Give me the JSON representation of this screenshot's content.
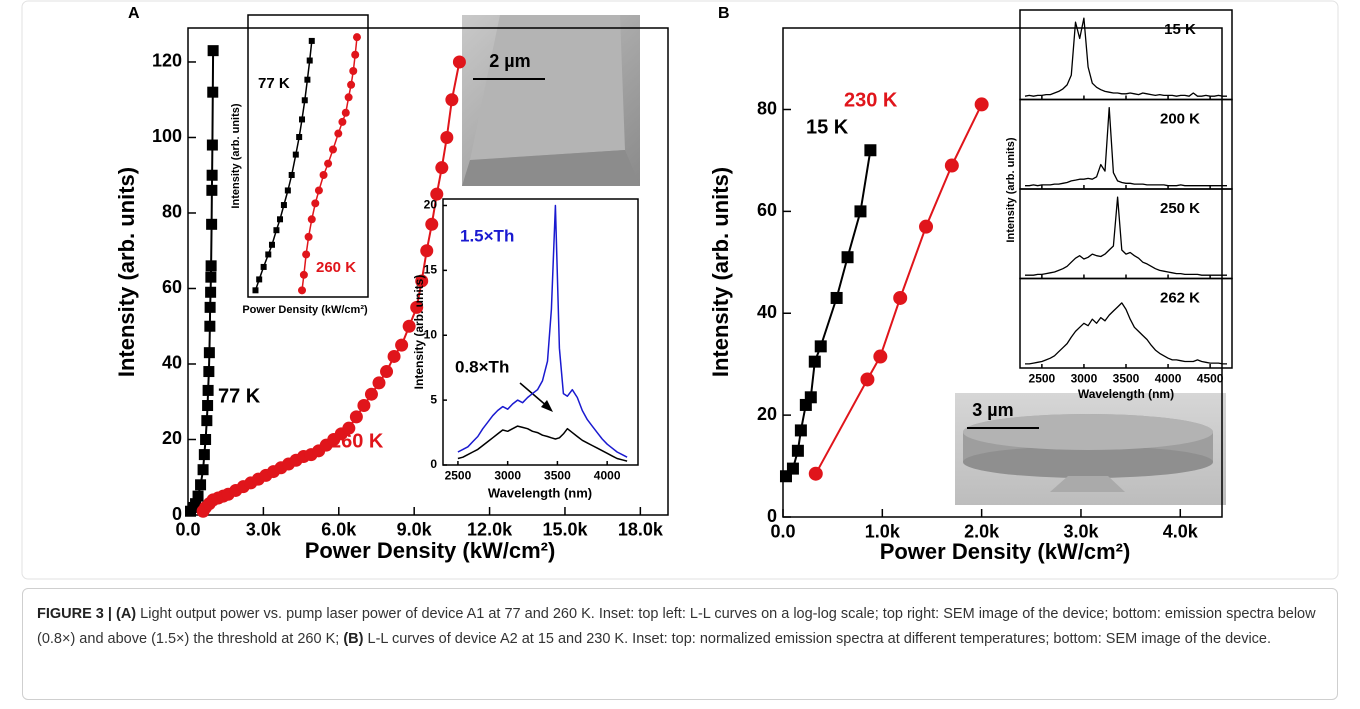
{
  "panel_labels": [
    "A",
    "B"
  ],
  "sem_images": [
    {
      "scale": "2 µm"
    },
    {
      "scale": "3 µm"
    }
  ],
  "chart_data": [
    {
      "type": "line",
      "xlabel": "Power Density (kW/cm²)",
      "ylabel": "Intensity (arb. units)",
      "xlim": [
        0,
        19100
      ],
      "ylim": [
        0,
        129
      ],
      "xticks": [
        {
          "value": 0,
          "label": "0.0"
        },
        {
          "value": 3000,
          "label": "3.0k"
        },
        {
          "value": 6000,
          "label": "6.0k"
        },
        {
          "value": 9000,
          "label": "9.0k"
        },
        {
          "value": 12000,
          "label": "12.0k"
        },
        {
          "value": 15000,
          "label": "15.0k"
        },
        {
          "value": 18000,
          "label": "18.0k"
        }
      ],
      "yticks": [
        0,
        20,
        40,
        60,
        80,
        100,
        120
      ],
      "series": [
        {
          "name": "77 K",
          "color": "#000000",
          "marker": "square",
          "x": [
            100,
            200,
            300,
            400,
            500,
            600,
            650,
            700,
            750,
            780,
            800,
            830,
            850,
            870,
            880,
            900,
            910,
            920,
            940,
            950,
            960,
            970,
            985,
            1000
          ],
          "values": [
            1,
            2,
            3,
            5,
            8,
            12,
            16,
            20,
            25,
            29,
            33,
            38,
            43,
            50,
            55,
            59,
            63,
            66,
            77,
            86,
            90,
            98,
            112,
            123
          ]
        },
        {
          "name": "260 K",
          "color": "#e0151b",
          "marker": "circle",
          "x": [
            600,
            700,
            850,
            1000,
            1200,
            1400,
            1600,
            1900,
            2200,
            2500,
            2800,
            3100,
            3400,
            3700,
            4000,
            4300,
            4600,
            4900,
            5200,
            5500,
            5800,
            6100,
            6400,
            6700,
            7000,
            7300,
            7600,
            7900,
            8200,
            8500,
            8800,
            9100,
            9300,
            9500,
            9700,
            9900,
            10100,
            10300,
            10500,
            10800
          ],
          "values": [
            1,
            2,
            3,
            4,
            4.5,
            5,
            5.5,
            6.5,
            7.5,
            8.5,
            9.5,
            10.5,
            11.5,
            12.5,
            13.5,
            14.5,
            15.5,
            16,
            17,
            18.5,
            20,
            21.5,
            23,
            26,
            29,
            32,
            35,
            38,
            42,
            45,
            50,
            55,
            62,
            70,
            77,
            85,
            92,
            100,
            110,
            120
          ]
        }
      ]
    },
    {
      "type": "line",
      "xscale": "log",
      "yscale": "log",
      "xlabel": "Power Density (kW/cm²)",
      "ylabel": "Intensity (arb. units)",
      "xlim": [
        30,
        20000
      ],
      "ylim": [
        0.3,
        200
      ],
      "series": [
        {
          "name": "77 K",
          "color": "#000000",
          "marker": "square",
          "x": [
            45,
            55,
            70,
            90,
            110,
            140,
            170,
            210,
            260,
            320,
            400,
            480,
            560,
            650,
            750,
            850,
            950
          ],
          "values": [
            0.35,
            0.45,
            0.6,
            0.8,
            1,
            1.4,
            1.8,
            2.5,
            3.5,
            5,
            8,
            12,
            18,
            28,
            45,
            70,
            110
          ]
        },
        {
          "name": "260 K",
          "color": "#e0151b",
          "marker": "circle",
          "x": [
            560,
            620,
            700,
            800,
            950,
            1150,
            1400,
            1800,
            2300,
            3000,
            4000,
            5000,
            6000,
            7000,
            8000,
            9000,
            10000,
            11000
          ],
          "values": [
            0.35,
            0.5,
            0.8,
            1.2,
            1.8,
            2.6,
            3.5,
            5,
            6.5,
            9,
            13,
            17,
            21,
            30,
            40,
            55,
            80,
            120
          ]
        }
      ]
    },
    {
      "type": "line",
      "xlabel": "Wavelength (nm)",
      "ylabel": "Intensity (arb. units)",
      "xlim": [
        2350,
        4310
      ],
      "ylim": [
        0,
        20.5
      ],
      "xticks": [
        2500,
        3000,
        3500,
        4000
      ],
      "yticks": [
        0,
        5,
        10,
        15,
        20
      ],
      "x": [
        2500,
        2550,
        2600,
        2650,
        2700,
        2750,
        2800,
        2850,
        2900,
        2950,
        3000,
        3050,
        3100,
        3150,
        3200,
        3250,
        3300,
        3350,
        3400,
        3440,
        3480,
        3520,
        3560,
        3600,
        3650,
        3700,
        3750,
        3800,
        3850,
        3900,
        3950,
        4000,
        4050,
        4100,
        4150,
        4200
      ],
      "series": [
        {
          "name": "1.5×Th",
          "color": "#1a1ad0",
          "values": [
            1,
            1.2,
            1.4,
            1.8,
            2.2,
            2.8,
            3.3,
            3.8,
            4.2,
            4.5,
            4.3,
            4.7,
            5,
            4.8,
            5.2,
            5.5,
            5.8,
            6.5,
            8,
            12,
            20,
            9,
            5.5,
            5.3,
            5.8,
            5.2,
            4.2,
            3.5,
            3,
            2.5,
            2,
            1.6,
            1.3,
            1,
            0.8,
            0.6
          ]
        },
        {
          "name": "0.8×Th",
          "color": "#000000",
          "values": [
            0.5,
            0.6,
            0.8,
            1,
            1.2,
            1.5,
            1.8,
            2.1,
            2.4,
            2.7,
            2.6,
            2.8,
            3,
            2.9,
            2.8,
            2.6,
            2.5,
            2.3,
            2.2,
            2.1,
            2,
            2.1,
            2.4,
            2.8,
            2.5,
            2.2,
            1.9,
            1.7,
            1.5,
            1.3,
            1.1,
            0.9,
            0.7,
            0.5,
            0.4,
            0.3
          ]
        }
      ]
    },
    {
      "type": "line",
      "xlabel": "Power Density (kW/cm²)",
      "ylabel": "Intensity (arb. units)",
      "xlim": [
        0,
        4420
      ],
      "ylim": [
        0,
        96
      ],
      "xticks": [
        {
          "value": 0,
          "label": "0.0"
        },
        {
          "value": 1000,
          "label": "1.0k"
        },
        {
          "value": 2000,
          "label": "2.0k"
        },
        {
          "value": 3000,
          "label": "3.0k"
        },
        {
          "value": 4000,
          "label": "4.0k"
        }
      ],
      "yticks": [
        0,
        20,
        40,
        60,
        80
      ],
      "series": [
        {
          "name": "15 K",
          "color": "#000000",
          "marker": "square",
          "x": [
            30,
            100,
            150,
            180,
            230,
            280,
            320,
            380,
            540,
            650,
            780,
            880
          ],
          "values": [
            8,
            9.5,
            13,
            17,
            22,
            23.5,
            30.5,
            33.5,
            43,
            51,
            60,
            72
          ]
        },
        {
          "name": "230 K",
          "color": "#e0151b",
          "marker": "circle",
          "x": [
            330,
            850,
            980,
            1180,
            1440,
            1700,
            2000
          ],
          "values": [
            8.5,
            27,
            31.5,
            43,
            57,
            69,
            81
          ]
        }
      ]
    },
    {
      "type": "line",
      "panels": true,
      "xlabel": "Wavelength (nm)",
      "ylabel": "Intensity (arb. units)",
      "xlim": [
        2240,
        4760
      ],
      "ylim": [
        0,
        1.1
      ],
      "xticks": [
        2500,
        3000,
        3500,
        4000,
        4500
      ],
      "x": [
        2300,
        2350,
        2400,
        2450,
        2500,
        2550,
        2600,
        2650,
        2700,
        2750,
        2800,
        2850,
        2900,
        2950,
        3000,
        3050,
        3100,
        3150,
        3200,
        3250,
        3300,
        3350,
        3400,
        3450,
        3500,
        3550,
        3600,
        3650,
        3700,
        3750,
        3800,
        3850,
        3900,
        3950,
        4000,
        4050,
        4100,
        4150,
        4200,
        4250,
        4300,
        4350,
        4400,
        4450,
        4500,
        4550,
        4600,
        4650,
        4700
      ],
      "series": [
        {
          "name": "15 K",
          "color": "#000000",
          "values": [
            0.04,
            0.05,
            0.04,
            0.05,
            0.05,
            0.06,
            0.06,
            0.08,
            0.1,
            0.13,
            0.18,
            0.3,
            0.95,
            0.75,
            1,
            0.4,
            0.2,
            0.15,
            0.12,
            0.1,
            0.09,
            0.08,
            0.08,
            0.07,
            0.07,
            0.08,
            0.07,
            0.06,
            0.08,
            0.07,
            0.06,
            0.05,
            0.06,
            0.05,
            0.05,
            0.05,
            0.04,
            0.05,
            0.05,
            0.04,
            0.08,
            0.04,
            0.04,
            0.05,
            0.04,
            0.04,
            0.05,
            0.04,
            0.04
          ]
        },
        {
          "name": "200 K",
          "color": "#000000",
          "values": [
            0.04,
            0.04,
            0.05,
            0.04,
            0.05,
            0.05,
            0.05,
            0.06,
            0.06,
            0.07,
            0.08,
            0.1,
            0.11,
            0.12,
            0.12,
            0.13,
            0.12,
            0.15,
            0.3,
            0.22,
            1,
            0.2,
            0.1,
            0.08,
            0.07,
            0.07,
            0.06,
            0.06,
            0.06,
            0.05,
            0.05,
            0.05,
            0.05,
            0.05,
            0.04,
            0.04,
            0.04,
            0.05,
            0.04,
            0.04,
            0.04,
            0.04,
            0.04,
            0.04,
            0.04,
            0.04,
            0.04,
            0.04,
            0.04
          ]
        },
        {
          "name": "250 K",
          "color": "#000000",
          "values": [
            0.04,
            0.04,
            0.04,
            0.05,
            0.05,
            0.06,
            0.07,
            0.08,
            0.1,
            0.12,
            0.15,
            0.2,
            0.25,
            0.28,
            0.24,
            0.26,
            0.3,
            0.28,
            0.27,
            0.3,
            0.35,
            0.4,
            1,
            0.35,
            0.3,
            0.32,
            0.28,
            0.25,
            0.2,
            0.18,
            0.15,
            0.12,
            0.1,
            0.09,
            0.08,
            0.07,
            0.06,
            0.06,
            0.05,
            0.05,
            0.05,
            0.05,
            0.04,
            0.04,
            0.04,
            0.04,
            0.04,
            0.04,
            0.04
          ]
        },
        {
          "name": "262 K",
          "color": "#000000",
          "values": [
            0.05,
            0.05,
            0.06,
            0.07,
            0.08,
            0.1,
            0.12,
            0.15,
            0.2,
            0.25,
            0.3,
            0.38,
            0.45,
            0.5,
            0.55,
            0.52,
            0.6,
            0.55,
            0.62,
            0.58,
            0.65,
            0.7,
            0.75,
            0.8,
            0.72,
            0.6,
            0.5,
            0.45,
            0.4,
            0.35,
            0.28,
            0.22,
            0.18,
            0.15,
            0.12,
            0.1,
            0.1,
            0.09,
            0.08,
            0.08,
            0.08,
            0.1,
            0.08,
            0.07,
            0.06,
            0.06,
            0.06,
            0.05,
            0.05
          ]
        }
      ]
    }
  ],
  "caption": {
    "figure": "FIGURE 3 |",
    "a_label": "(A)",
    "a_text": "Light output power vs. pump laser power of device A1 at 77 and 260 K. Inset: top left: L-L curves on a log-log scale; top right: SEM image of the device; bottom: emission spectra below (0.8×) and above (1.5×) the threshold at 260 K;",
    "b_label": "(B)",
    "b_text": "L-L curves of device A2 at 15 and 230 K. Inset: top: normalized emission spectra at different temperatures; bottom: SEM image of the device."
  }
}
